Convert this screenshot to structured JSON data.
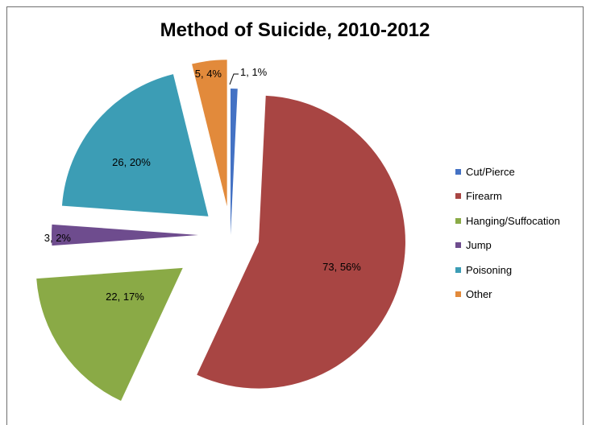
{
  "chart_data": {
    "type": "pie",
    "title": "Method of Suicide, 2010-2012",
    "legend_position": "right",
    "exploded": true,
    "slices": [
      {
        "category": "Cut/Pierce",
        "value": 1,
        "percent": "1%",
        "label": "1, 1%",
        "color": "#4472C4"
      },
      {
        "category": "Firearm",
        "value": 73,
        "percent": "56%",
        "label": "73, 56%",
        "color": "#A84543"
      },
      {
        "category": "Hanging/Suffocation",
        "value": 22,
        "percent": "17%",
        "label": "22, 17%",
        "color": "#8AAA46"
      },
      {
        "category": "Jump",
        "value": 3,
        "percent": "2%",
        "label": "3, 2%",
        "color": "#6E4C8E"
      },
      {
        "category": "Poisoning",
        "value": 26,
        "percent": "20%",
        "label": "26, 20%",
        "color": "#3C9DB5"
      },
      {
        "category": "Other",
        "value": 5,
        "percent": "4%",
        "label": "5, 4%",
        "color": "#E28A3B"
      }
    ]
  }
}
